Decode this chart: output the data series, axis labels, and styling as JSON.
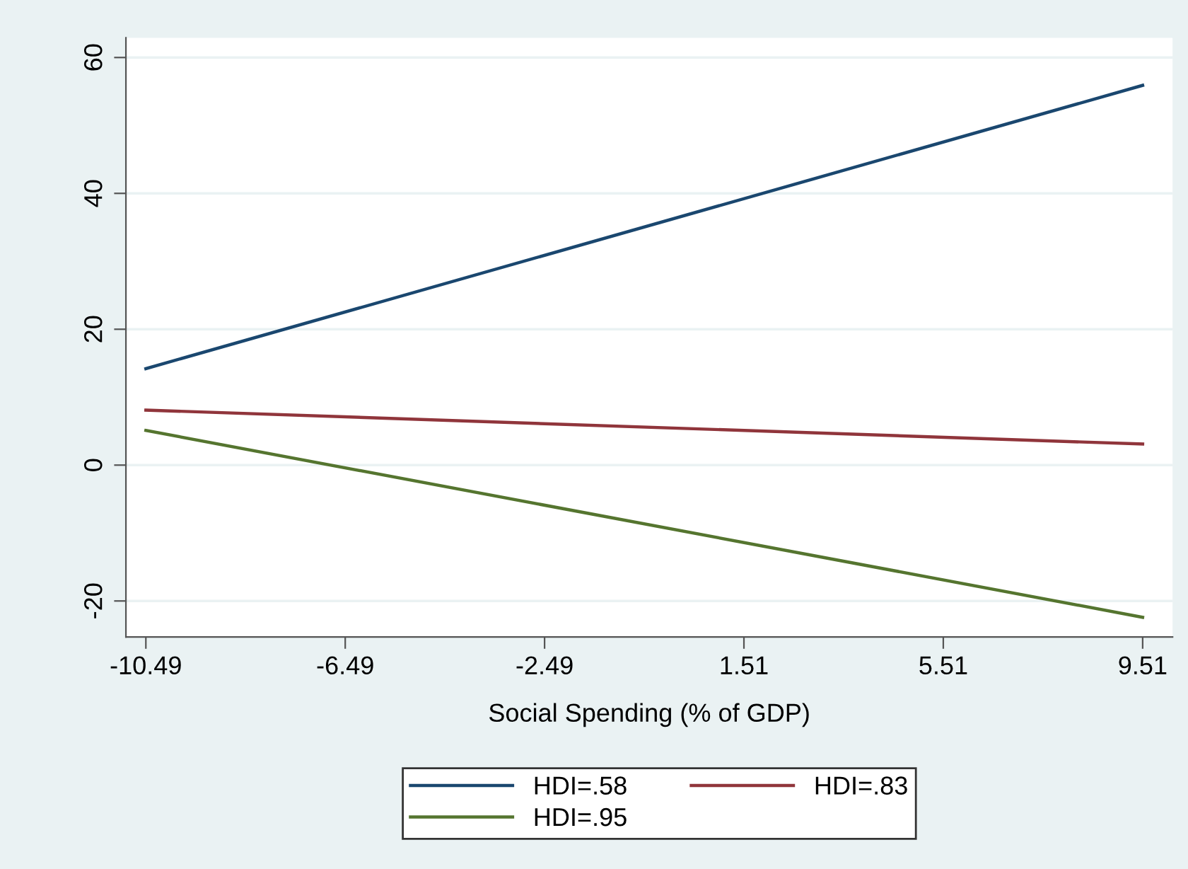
{
  "chart_data": {
    "type": "line",
    "xlabel": "Social Spending (% of GDP)",
    "x": [
      -10.49,
      9.51
    ],
    "series": [
      {
        "name": "HDI=.58",
        "color": "#1a476f",
        "values": [
          14.2,
          55.9
        ]
      },
      {
        "name": "HDI=.83",
        "color": "#90353b",
        "values": [
          8.1,
          3.1
        ]
      },
      {
        "name": "HDI=.95",
        "color": "#55752f",
        "values": [
          5.1,
          -22.4
        ]
      }
    ],
    "xlim": [
      -10.89,
      10.11
    ],
    "xticks": [
      -10.49,
      -6.49,
      -2.49,
      1.51,
      5.51,
      9.51
    ],
    "ylim": [
      -25.3,
      62.9
    ],
    "yticks": [
      -20,
      0,
      20,
      40,
      60
    ],
    "grid": "y",
    "legend": "bottom",
    "marker": "none",
    "line_style": "solid"
  }
}
